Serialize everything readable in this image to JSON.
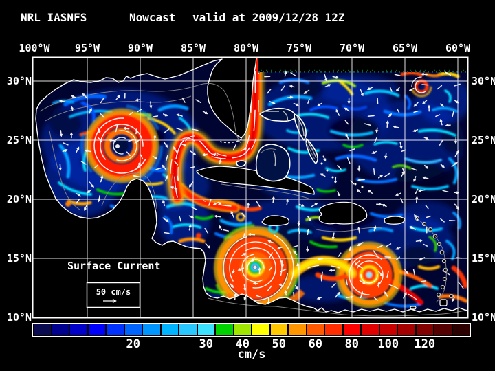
{
  "title": {
    "model": "NRL IASNFS",
    "product": "Nowcast",
    "valid_time": "valid at 2009/12/28 12Z"
  },
  "axes": {
    "lon_labels": [
      "100°W",
      "95°W",
      "90°W",
      "85°W",
      "80°W",
      "75°W",
      "70°W",
      "65°W",
      "60°W"
    ],
    "lat_labels": [
      "30°N",
      "25°N",
      "20°N",
      "15°N",
      "10°N"
    ]
  },
  "map": {
    "annotation": "Surface Current",
    "scale_label": "50 cm/s"
  },
  "colorbar": {
    "unit": "cm/s",
    "ticks": [
      {
        "label": "20",
        "cell": 5
      },
      {
        "label": "30",
        "cell": 9
      },
      {
        "label": "40",
        "cell": 11
      },
      {
        "label": "50",
        "cell": 13
      },
      {
        "label": "60",
        "cell": 15
      },
      {
        "label": "80",
        "cell": 17
      },
      {
        "label": "100",
        "cell": 19
      },
      {
        "label": "120",
        "cell": 21
      }
    ],
    "cell_colors": [
      "#0A0A50",
      "#00008F",
      "#0000C8",
      "#0000FF",
      "#0032FF",
      "#0064FF",
      "#0096FF",
      "#00B4FF",
      "#28C8FF",
      "#3CE1FF",
      "#00D200",
      "#A0E600",
      "#FFFF00",
      "#FFC800",
      "#FF9600",
      "#FF5A00",
      "#FF2D00",
      "#FF0000",
      "#E10000",
      "#C80000",
      "#A50000",
      "#820000",
      "#550000",
      "#2D0000"
    ]
  },
  "colors": {
    "background": "#000000",
    "ocean": "#000430",
    "land": "#000000",
    "coastline": "#FFFFFF",
    "grid": "#FFFFFF",
    "bathymetry_contour": "#8A8A8A",
    "text": "#FFFFFF"
  }
}
